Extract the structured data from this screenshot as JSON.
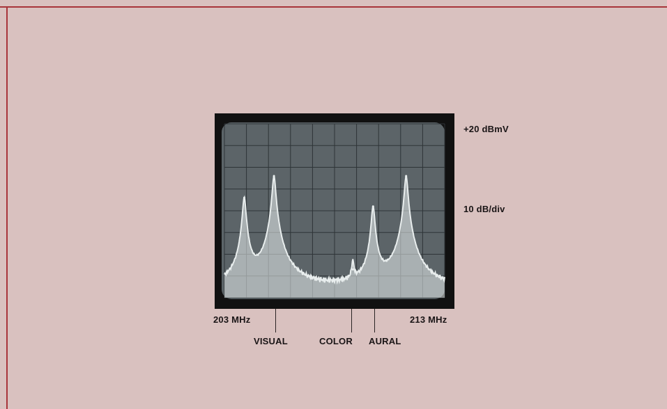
{
  "colors": {
    "page_bg": "#d9c1bf",
    "border": "#a8343a",
    "bezel": "#111111",
    "screen": "#5c6468",
    "grid": "#2e3437",
    "trace": "#e9eeee",
    "label": "#1a1516"
  },
  "annotations": {
    "top_level": "+20 dBmV",
    "scale": "10 dB/div",
    "start_freq": "203 MHz",
    "stop_freq": "213 MHz",
    "visual": "VISUAL",
    "color": "COLOR",
    "aural": "AURAL"
  },
  "chart_data": {
    "type": "line",
    "title": "",
    "xlabel": "",
    "ylabel": "",
    "x_unit": "MHz",
    "y_unit": "dBmV",
    "xlim": [
      203,
      213
    ],
    "ylim": [
      -60,
      20
    ],
    "grid": true,
    "grid_divisions": {
      "x": 10,
      "y": 8
    },
    "reference_level": "+20 dBmV",
    "scale_per_division": "10 dB/div",
    "noise_floor_db": -56,
    "peaks": [
      {
        "label": "",
        "freq_mhz": 203.9,
        "level_db": -14
      },
      {
        "label": "VISUAL",
        "freq_mhz": 205.25,
        "level_db": -4
      },
      {
        "label": "COLOR",
        "freq_mhz": 208.83,
        "level_db": -47
      },
      {
        "label": "AURAL",
        "freq_mhz": 209.75,
        "level_db": -18
      },
      {
        "label": "",
        "freq_mhz": 211.25,
        "level_db": -4
      }
    ]
  }
}
